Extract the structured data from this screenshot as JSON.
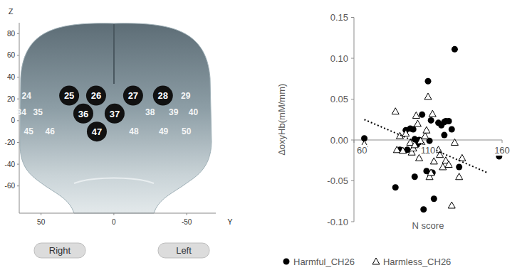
{
  "chart_data": [
    {
      "type": "scatter",
      "x_label": "Y",
      "y_label": "Z",
      "xlim": [
        65,
        -70
      ],
      "ylim": [
        -85,
        90
      ],
      "xticks": [
        50,
        0,
        -50
      ],
      "yticks": [
        80,
        60,
        40,
        20,
        0,
        -20,
        -40,
        -60
      ],
      "annotations": [
        "Right",
        "Left"
      ],
      "series": [
        {
          "marker": "circle",
          "color": "#111111",
          "labels": [
            "25",
            "26",
            "27",
            "28",
            "36",
            "37",
            "47"
          ],
          "x": [
            30.7,
            12.2,
            -13.2,
            -33.7,
            21,
            -0.5,
            11.7
          ],
          "values": [
            23,
            23,
            23,
            23,
            6.5,
            6.5,
            -10
          ]
        },
        {
          "marker": "none",
          "color": "#f4f6f7",
          "labels": [
            "24",
            "29",
            "34",
            "35",
            "38",
            "39",
            "40",
            "45",
            "46",
            "48",
            "49",
            "50"
          ],
          "x": [
            60,
            -49.3,
            63.4,
            52.2,
            -24.9,
            -41,
            -54.6,
            58.5,
            43.9,
            -13.7,
            -34.1,
            -49.8
          ],
          "values": [
            23,
            23,
            8,
            8,
            8,
            8,
            8,
            -10,
            -10,
            -10,
            -10,
            -10
          ]
        }
      ]
    },
    {
      "type": "scatter",
      "x_label": "N score",
      "y_label": "ΔoxyHb(mM/mm)",
      "xlim": [
        60,
        160
      ],
      "ylim": [
        -0.1,
        0.15
      ],
      "xticks": [
        60,
        110,
        160
      ],
      "yticks": [
        {
          "value": -0.1,
          "label": "-0.10"
        },
        {
          "value": -0.05,
          "label": "-0.05"
        },
        {
          "value": 0,
          "label": "0.00"
        },
        {
          "value": 0.05,
          "label": "0.05"
        },
        {
          "value": 0.1,
          "label": "0.10"
        },
        {
          "value": 0.15,
          "label": "0.15"
        }
      ],
      "legend": "bottom",
      "series": [
        {
          "name": "Harmful_CH26",
          "marker": "circle",
          "color": "#000000",
          "x": [
            67,
            88,
            91,
            95,
            96,
            98,
            100,
            101,
            101,
            103,
            104,
            106,
            107,
            109,
            110,
            111,
            112,
            113,
            114,
            117,
            119,
            121,
            121,
            122,
            124,
            126,
            128,
            131,
            158
          ],
          "values": [
            0.002,
            -0.058,
            -0.012,
            0.012,
            -0.012,
            0.014,
            0.013,
            0.001,
            -0.045,
            -0.005,
            0,
            0.031,
            -0.085,
            -0.038,
            0.072,
            -0.001,
            0.024,
            -0.04,
            -0.072,
            0.021,
            0.018,
            0.022,
            0.006,
            0.023,
            0.023,
            0.013,
            0.111,
            -0.033,
            -0.02
          ]
        },
        {
          "name": "Harmless_CH26",
          "marker": "open-triangle",
          "color": "#000000",
          "x": [
            67,
            88,
            89,
            91,
            93,
            95,
            98,
            99,
            100,
            101,
            102,
            103,
            104,
            105,
            107,
            108,
            109,
            110,
            111,
            112,
            113,
            114,
            117,
            118,
            120,
            122,
            124,
            126,
            128,
            131,
            133,
            157
          ],
          "values": [
            -0.005,
            0.035,
            -0.012,
            0.005,
            -0.013,
            0.008,
            -0.003,
            -0.015,
            -0.01,
            -0.006,
            0.03,
            0.02,
            -0.022,
            -0.001,
            -0.007,
            0.005,
            0.012,
            0.053,
            -0.045,
            -0.04,
            0.032,
            -0.026,
            -0.012,
            -0.018,
            -0.033,
            -0.025,
            -0.03,
            -0.08,
            -0.003,
            -0.045,
            -0.022,
            -0.015
          ]
        },
        {
          "type": "line",
          "line_style": "dotted",
          "color": "#000000",
          "x": [
            67,
            150
          ],
          "values": [
            0.025,
            -0.04
          ]
        }
      ]
    }
  ]
}
